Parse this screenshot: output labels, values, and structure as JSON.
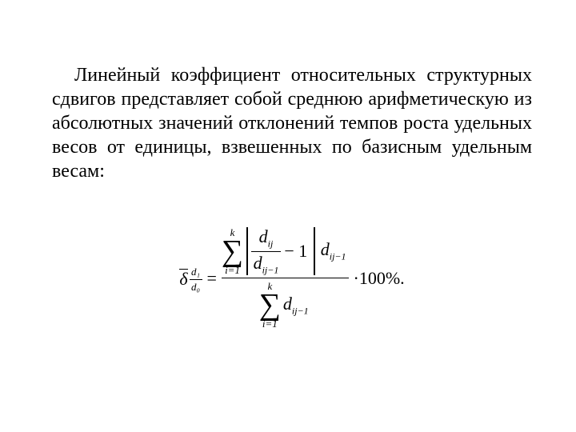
{
  "paragraph": "Линейный коэффициент относительных структурных сдвигов представляет собой среднюю арифметическую из абсолютных значений отклонений темпов роста удельных весов от единицы, взвешенных по базисным удельным весам:",
  "formula": {
    "lhs": {
      "delta": "δ",
      "sub_num": "d₁",
      "sub_den": "d₀"
    },
    "eq": "=",
    "numerator": {
      "sigma_upper": "k",
      "sigma_sign": "∑",
      "sigma_lower": "i=1",
      "inner_num": "d",
      "inner_num_sub": "ij",
      "inner_den": "d",
      "inner_den_sub": "ij−1",
      "minus_one": "− 1",
      "after_abs": "d",
      "after_abs_sub": "ij−1"
    },
    "denominator": {
      "sigma_upper": "k",
      "sigma_sign": "∑",
      "sigma_lower": "i=1",
      "d": "d",
      "d_sub": "ij−1"
    },
    "tail": "·100%.",
    "dot_leading": ""
  }
}
